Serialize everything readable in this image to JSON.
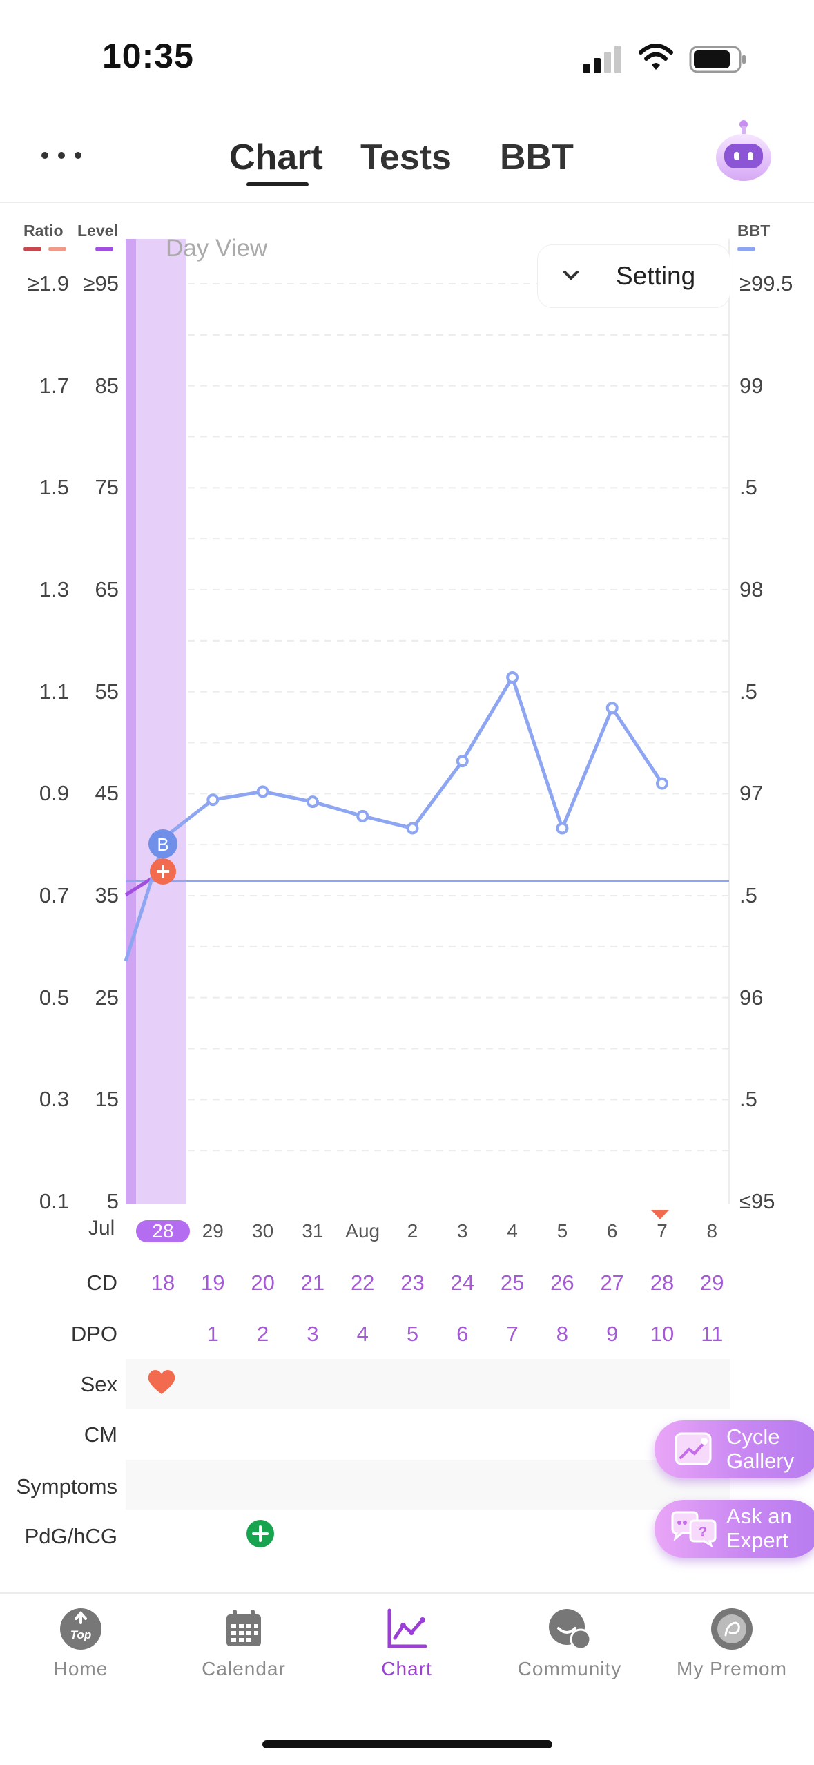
{
  "status": {
    "time": "10:35"
  },
  "header": {
    "tabs": [
      {
        "label": "Chart",
        "active": true
      },
      {
        "label": "Tests",
        "active": false
      },
      {
        "label": "BBT",
        "active": false
      }
    ]
  },
  "chart": {
    "legend": {
      "ratio": "Ratio",
      "level": "Level",
      "bbt": "BBT"
    },
    "ratio_ticks": [
      "≥1.9",
      "1.7",
      "1.5",
      "1.3",
      "1.1",
      "0.9",
      "0.7",
      "0.5",
      "0.3",
      "0.1"
    ],
    "level_ticks": [
      "≥95",
      "85",
      "75",
      "65",
      "55",
      "45",
      "35",
      "25",
      "15",
      "5"
    ],
    "bbt_ticks": [
      "≥99.5",
      "99",
      ".5",
      "98",
      ".5",
      "97",
      ".5",
      "96",
      ".5",
      "≤95"
    ],
    "day_view": "Day View",
    "setting_label": "Setting",
    "marker_b": "B",
    "marker_plus": "+",
    "colors": {
      "bbt": "#8ea6f2",
      "level": "#a24fe0",
      "period": "#e6cff8",
      "ratio1": "#c9484f",
      "ratio2": "#f29a8a"
    }
  },
  "chart_data": {
    "type": "line",
    "x": [
      "Jul 28",
      "29",
      "30",
      "31",
      "Aug",
      "2",
      "3",
      "4",
      "5",
      "6",
      "7",
      "8"
    ],
    "series": [
      {
        "name": "BBT",
        "values": [
          96.78,
          96.97,
          97.01,
          96.96,
          96.89,
          96.83,
          97.16,
          97.57,
          96.83,
          97.42,
          97.05,
          null
        ]
      }
    ],
    "coverline": 96.57,
    "y_left_ratio_range": [
      0.1,
      1.9
    ],
    "y_left_level_range": [
      5,
      95
    ],
    "y_right_bbt_range": [
      95,
      99.5
    ]
  },
  "x_axis": {
    "month_first": "Jul",
    "days": [
      "28",
      "29",
      "30",
      "31",
      "Aug",
      "2",
      "3",
      "4",
      "5",
      "6",
      "7",
      "8"
    ]
  },
  "rows": {
    "cd_label": "CD",
    "cd_values": [
      "18",
      "19",
      "20",
      "21",
      "22",
      "23",
      "24",
      "25",
      "26",
      "27",
      "28",
      "29"
    ],
    "dpo_label": "DPO",
    "dpo_values": [
      "",
      "1",
      "2",
      "3",
      "4",
      "5",
      "6",
      "7",
      "8",
      "9",
      "10",
      "11"
    ],
    "sex_label": "Sex",
    "cm_label": "CM",
    "symptoms_label": "Symptoms",
    "pdg_label": "PdG/hCG"
  },
  "floating": {
    "cycle_gallery": "Cycle\nGallery",
    "ask_expert": "Ask an\nExpert"
  },
  "nav": {
    "items": [
      {
        "label": "Home",
        "active": false
      },
      {
        "label": "Calendar",
        "active": false
      },
      {
        "label": "Chart",
        "active": true
      },
      {
        "label": "Community",
        "active": false
      },
      {
        "label": "My Premom",
        "active": false
      }
    ]
  }
}
